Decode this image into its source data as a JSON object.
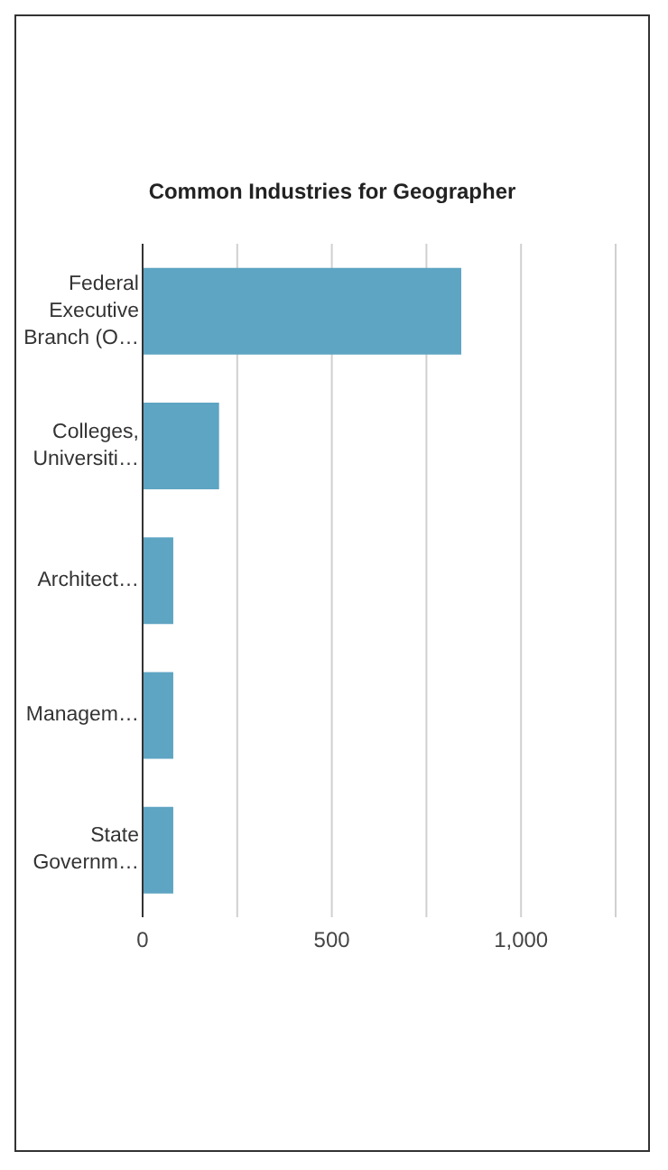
{
  "chart_data": {
    "type": "bar",
    "orientation": "horizontal",
    "title": "Common Industries for Geographer",
    "categories": [
      "Federal Executive Branch (O…",
      "Colleges, Universiti…",
      "Architect…",
      "Managem…",
      "State Governm…"
    ],
    "values": [
      842,
      202,
      81,
      81,
      81
    ],
    "color": "#5ea4c3",
    "xlim": [
      0,
      1250
    ],
    "xticks": [
      0,
      {
        "value": 250,
        "label": null
      },
      500,
      {
        "value": 750,
        "label": null
      },
      {
        "value": 1000,
        "label": "1,000"
      },
      {
        "value": 1250,
        "label": null
      }
    ],
    "grid": "x"
  }
}
